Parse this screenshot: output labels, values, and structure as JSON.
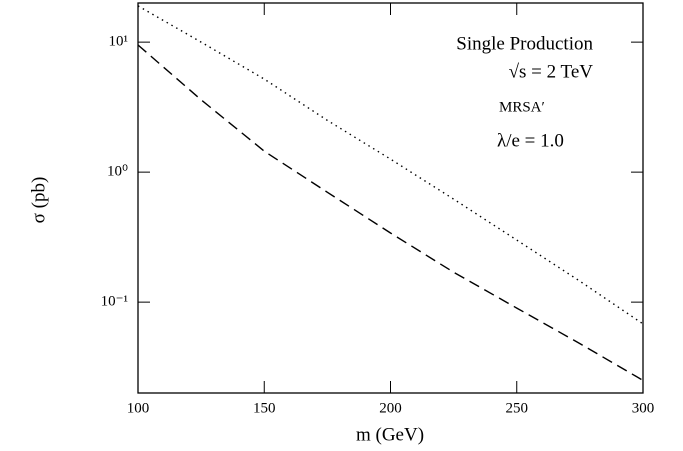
{
  "chart_data": {
    "type": "line",
    "xlabel": "m (GeV)",
    "ylabel": "σ (pb)",
    "annotations": [
      "Single Production",
      "√s = 2 TeV",
      "MRSA′",
      "λ/e = 1.0"
    ],
    "x": [
      100,
      125,
      150,
      175,
      200,
      225,
      250,
      275,
      300
    ],
    "series": [
      {
        "color": "#000000",
        "dash": "dotted",
        "values": [
          19,
          10,
          5.2,
          2.5,
          1.26,
          0.62,
          0.3,
          0.145,
          0.068
        ]
      },
      {
        "color": "#000000",
        "dash": "dashed",
        "values": [
          9.5,
          3.6,
          1.45,
          0.7,
          0.34,
          0.17,
          0.09,
          0.048,
          0.025
        ]
      }
    ],
    "xlim": [
      100,
      300
    ],
    "xticks": [
      100,
      150,
      200,
      250,
      300
    ],
    "ylim": [
      0.02,
      20
    ],
    "ylog": true,
    "yticks": [
      {
        "value": 0.1,
        "label": "10⁻¹"
      },
      {
        "value": 1,
        "label": "10⁰"
      },
      {
        "value": 10,
        "label": "10¹"
      }
    ]
  }
}
